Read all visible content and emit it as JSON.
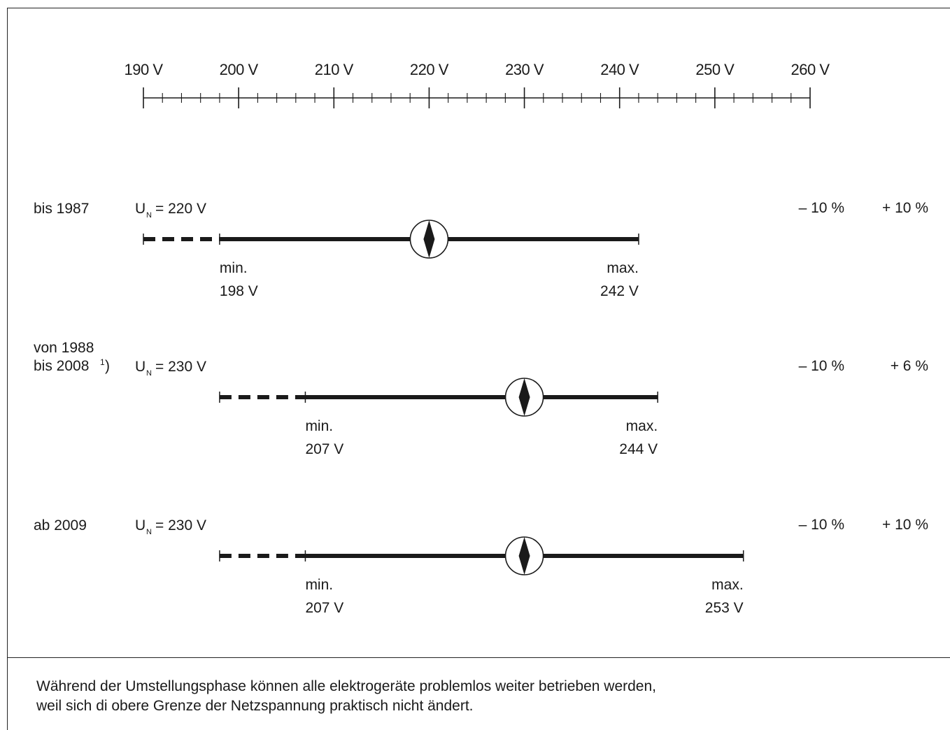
{
  "scale": {
    "min": 190,
    "max": 260,
    "major_step": 10,
    "minor_step": 2,
    "labels": [
      "190 V",
      "200 V",
      "210 V",
      "220 V",
      "230 V",
      "240 V",
      "250 V",
      "260 V"
    ]
  },
  "rows": [
    {
      "period_lines": [
        "bis 1987"
      ],
      "footnote": "",
      "nominal_symbol": "U",
      "nominal_sub": "N",
      "nominal_text": " = 220 V",
      "nominal": 220,
      "min": 198,
      "max": 242,
      "dashed_from": 190,
      "min_label": "min.",
      "min_value": "198 V",
      "max_label": "max.",
      "max_value": "242 V",
      "tol_minus": "– 10 %",
      "tol_plus": "+ 10 %"
    },
    {
      "period_lines": [
        "von 1988",
        "bis 2008"
      ],
      "footnote": "1",
      "footnote_close": ")",
      "nominal_symbol": "U",
      "nominal_sub": "N",
      "nominal_text": " = 230 V",
      "nominal": 230,
      "min": 207,
      "max": 244,
      "dashed_from": 198,
      "min_label": "min.",
      "min_value": "207 V",
      "max_label": "max.",
      "max_value": "244 V",
      "tol_minus": "– 10 %",
      "tol_plus": "+ 6 %"
    },
    {
      "period_lines": [
        "ab 2009"
      ],
      "footnote": "",
      "nominal_symbol": "U",
      "nominal_sub": "N",
      "nominal_text": " = 230 V",
      "nominal": 230,
      "min": 207,
      "max": 253,
      "dashed_from": 198,
      "min_label": "min.",
      "min_value": "207 V",
      "max_label": "max.",
      "max_value": "253 V",
      "tol_minus": "– 10 %",
      "tol_plus": "+ 10 %"
    }
  ],
  "note": {
    "line1": "Während der Umstellungsphase können alle elektrogeräte problemlos weiter betrieben werden,",
    "line2": "weil sich di obere Grenze der Netzspannung praktisch nicht ändert."
  }
}
